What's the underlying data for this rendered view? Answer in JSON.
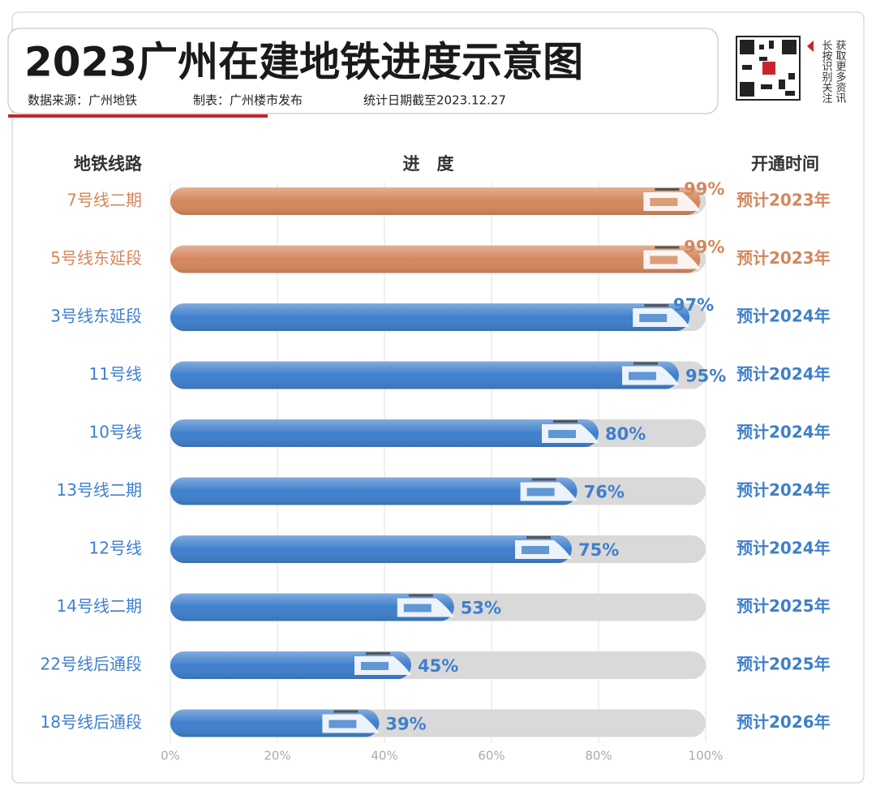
{
  "chart_data": {
    "type": "bar",
    "orientation": "horizontal",
    "title": "2023广州在建地铁进度示意图",
    "source": "数据来源：广州地铁",
    "credit": "制表：广州楼市发布",
    "date_note": "统计日期截至2023.12.27",
    "qr_note": [
      "长按识别关注",
      "获取更多资讯"
    ],
    "column_headers": {
      "category": "地铁线路",
      "value": "进　度",
      "extra": "开通时间"
    },
    "categories": [
      "7号线二期",
      "5号线东延段",
      "3号线东延段",
      "11号线",
      "10号线",
      "13号线二期",
      "12号线",
      "14号线二期",
      "22号线后通段",
      "18号线后通段"
    ],
    "values": [
      99,
      99,
      97,
      95,
      80,
      76,
      75,
      53,
      45,
      39
    ],
    "value_labels": [
      "99%",
      "99%",
      "97%",
      "95%",
      "80%",
      "76%",
      "75%",
      "53%",
      "45%",
      "39%"
    ],
    "open_times": [
      "预计2023年",
      "预计2023年",
      "预计2024年",
      "预计2024年",
      "预计2024年",
      "预计2024年",
      "预计2024年",
      "预计2025年",
      "预计2025年",
      "预计2026年"
    ],
    "colors": [
      "#d4875c",
      "#d4875c",
      "#3f7fcc",
      "#3f7fcc",
      "#3f7fcc",
      "#3f7fcc",
      "#3f7fcc",
      "#3f7fcc",
      "#3f7fcc",
      "#3f7fcc"
    ],
    "track_color": "#d9d9d9",
    "xlim": [
      0,
      100
    ],
    "xticks": [
      {
        "value": 0,
        "label": "0%"
      },
      {
        "value": 20,
        "label": "20%"
      },
      {
        "value": 40,
        "label": "40%"
      },
      {
        "value": 60,
        "label": "60%"
      },
      {
        "value": 80,
        "label": "80%"
      },
      {
        "value": 100,
        "label": "100%"
      }
    ],
    "grid": true
  }
}
